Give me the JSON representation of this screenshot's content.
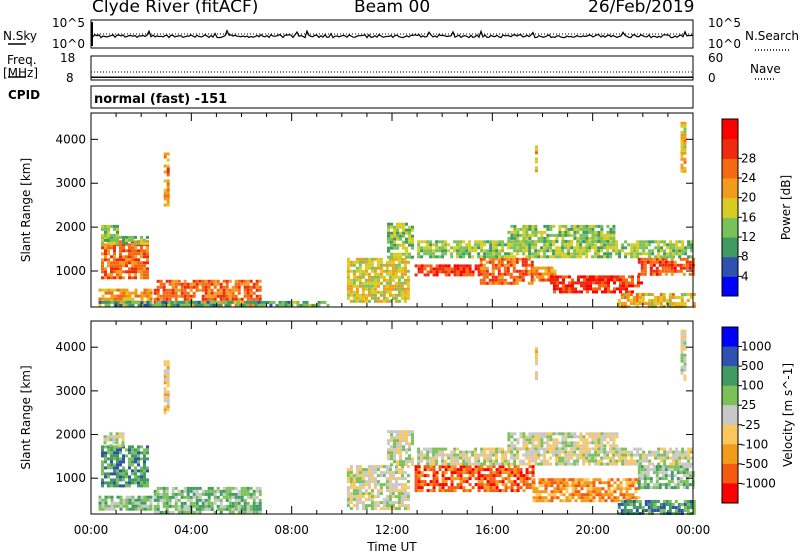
{
  "header": {
    "site": "Clyde River (fitACF)",
    "beam": "Beam 00",
    "date": "26/Feb/2019"
  },
  "nsky_panel": {
    "left_label": "N.Sky",
    "right_label": "N.Search",
    "y_ticks": [
      "10^5",
      "10^0"
    ],
    "right_ticks": [
      "10^5",
      "10^0"
    ],
    "nsky_level": 0.78,
    "nsearch_level": 0.5
  },
  "freq_panel": {
    "left_label_top": "Freq.",
    "left_label_bottom": "[MHz]",
    "right_label": "Nave",
    "y_ticks": [
      "18",
      "8"
    ],
    "right_ticks": [
      "60",
      "0"
    ],
    "freq_mhz": 10.4,
    "nave_level": 20
  },
  "cpid": {
    "label": "CPID",
    "value": "normal (fast) -151"
  },
  "colors": {
    "power": [
      "#0000ff",
      "#2f52b0",
      "#3f9a63",
      "#7bc15a",
      "#d7cd22",
      "#f39b1a",
      "#f46a12",
      "#f02a0e",
      "#ff0000"
    ],
    "velocity": [
      "#ff0000",
      "#f55a10",
      "#f39b1a",
      "#fcc85e",
      "#c8c8c8",
      "#7bc15a",
      "#3f9a63",
      "#2f52b0",
      "#0000ff"
    ]
  },
  "chart_data": [
    {
      "type": "heatmap",
      "name": "power",
      "ylabel": "Slant Range [km]",
      "ylim": [
        180,
        4600
      ],
      "yticks": [
        1000,
        2000,
        3000,
        4000
      ],
      "xlim": [
        0,
        24
      ],
      "colorbar": {
        "label": "Power [dB]",
        "ticks": [
          "4",
          "8",
          "12",
          "16",
          "20",
          "24",
          "28"
        ],
        "range": [
          0,
          32
        ]
      },
      "regions": [
        {
          "t0": 0.4,
          "t1": 2.3,
          "r0": 850,
          "r1": 1700,
          "level": 24
        },
        {
          "t0": 0.4,
          "t1": 2.3,
          "r0": 1650,
          "r1": 1800,
          "level": 12
        },
        {
          "t0": 0.4,
          "t1": 1.0,
          "r0": 1800,
          "r1": 2050,
          "level": 12
        },
        {
          "t0": 0.3,
          "t1": 2.4,
          "r0": 300,
          "r1": 600,
          "level": 20
        },
        {
          "t0": 2.5,
          "t1": 6.8,
          "r0": 250,
          "r1": 800,
          "level": 24
        },
        {
          "t0": 0.3,
          "t1": 9.5,
          "r0": 190,
          "r1": 320,
          "level": 10
        },
        {
          "t0": 10.2,
          "t1": 12.6,
          "r0": 300,
          "r1": 1300,
          "level": 16
        },
        {
          "t0": 11.8,
          "t1": 12.8,
          "r0": 1300,
          "r1": 2100,
          "level": 12
        },
        {
          "t0": 12.9,
          "t1": 15.5,
          "r0": 900,
          "r1": 1150,
          "level": 28
        },
        {
          "t0": 15.5,
          "t1": 17.6,
          "r0": 700,
          "r1": 1300,
          "level": 24
        },
        {
          "t0": 17.6,
          "t1": 18.5,
          "r0": 800,
          "r1": 1100,
          "level": 22
        },
        {
          "t0": 18.3,
          "t1": 21.9,
          "r0": 500,
          "r1": 900,
          "level": 28
        },
        {
          "t0": 21.8,
          "t1": 24.0,
          "r0": 900,
          "r1": 1300,
          "level": 26
        },
        {
          "t0": 13.0,
          "t1": 24.0,
          "r0": 1300,
          "r1": 1700,
          "level": 13
        },
        {
          "t0": 16.6,
          "t1": 20.8,
          "r0": 1700,
          "r1": 2050,
          "level": 12
        },
        {
          "t0": 21.0,
          "t1": 24.0,
          "r0": 200,
          "r1": 500,
          "level": 18
        },
        {
          "t0": 2.9,
          "t1": 3.05,
          "r0": 2500,
          "r1": 3700,
          "level": 22
        },
        {
          "t0": 17.7,
          "t1": 17.8,
          "r0": 3300,
          "r1": 4000,
          "level": 20
        },
        {
          "t0": 23.5,
          "t1": 23.7,
          "r0": 3300,
          "r1": 4400,
          "level": 18
        }
      ]
    },
    {
      "type": "heatmap",
      "name": "velocity",
      "ylabel": "Slant Range [km]",
      "ylim": [
        180,
        4600
      ],
      "yticks": [
        1000,
        2000,
        3000,
        4000
      ],
      "xlim": [
        0,
        24
      ],
      "xlabel": "Time UT",
      "xticks": [
        "00:00",
        "04:00",
        "08:00",
        "12:00",
        "16:00",
        "20:00",
        "00:00"
      ],
      "colorbar": {
        "label": "Velocity [m s^-1]",
        "ticks": [
          "1000",
          "500",
          "100",
          "25",
          "-25",
          "-100",
          "-500",
          "-1000"
        ]
      },
      "regions": [
        {
          "t0": 0.4,
          "t1": 2.3,
          "r0": 850,
          "r1": 1750,
          "level": 6
        },
        {
          "t0": 0.5,
          "t1": 1.3,
          "r0": 1750,
          "r1": 2050,
          "level": 4
        },
        {
          "t0": 0.3,
          "t1": 2.4,
          "r0": 300,
          "r1": 600,
          "level": 5
        },
        {
          "t0": 2.5,
          "t1": 6.8,
          "r0": 250,
          "r1": 800,
          "level": 5
        },
        {
          "t0": 10.2,
          "t1": 12.6,
          "r0": 300,
          "r1": 1300,
          "level": 4
        },
        {
          "t0": 11.8,
          "t1": 12.8,
          "r0": 1300,
          "r1": 2100,
          "level": 4
        },
        {
          "t0": 12.9,
          "t1": 17.6,
          "r0": 700,
          "r1": 1300,
          "level": 1
        },
        {
          "t0": 17.6,
          "t1": 21.9,
          "r0": 500,
          "r1": 1000,
          "level": 2
        },
        {
          "t0": 21.8,
          "t1": 24.0,
          "r0": 800,
          "r1": 1300,
          "level": 5
        },
        {
          "t0": 13.0,
          "t1": 24.0,
          "r0": 1300,
          "r1": 1700,
          "level": 4
        },
        {
          "t0": 16.6,
          "t1": 21.0,
          "r0": 1650,
          "r1": 2050,
          "level": 4
        },
        {
          "t0": 21.0,
          "t1": 24.0,
          "r0": 200,
          "r1": 500,
          "level": 6
        },
        {
          "t0": 2.9,
          "t1": 3.05,
          "r0": 2500,
          "r1": 3700,
          "level": 3
        },
        {
          "t0": 17.7,
          "t1": 17.8,
          "r0": 3300,
          "r1": 4000,
          "level": 3
        },
        {
          "t0": 23.5,
          "t1": 23.7,
          "r0": 3300,
          "r1": 4400,
          "level": 4
        }
      ]
    }
  ]
}
